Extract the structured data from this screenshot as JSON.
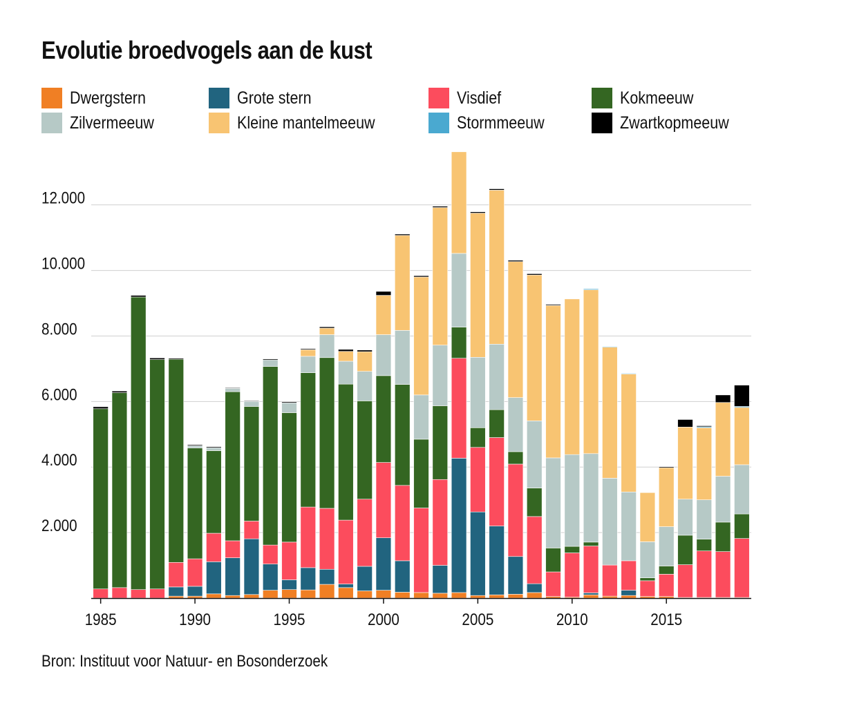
{
  "title": "Evolutie broedvogels aan de kust",
  "source": "Bron: Instituut voor Natuur- en Bosonderzoek",
  "colors": {
    "Dwergstern": "#f07f24",
    "Grote stern": "#21647f",
    "Visdief": "#fc4c5d",
    "Kokmeeuw": "#346622",
    "Zilvermeeuw": "#b6c9c6",
    "Kleine mantelmeeuw": "#f8c472",
    "Stormmeeuw": "#4aa9d0",
    "Zwartkopmeeuw": "#000000"
  },
  "legend": [
    {
      "label": "Dwergstern",
      "color": "#f07f24"
    },
    {
      "label": "Grote stern",
      "color": "#21647f"
    },
    {
      "label": "Visdief",
      "color": "#fc4c5d"
    },
    {
      "label": "Kokmeeuw",
      "color": "#346622"
    },
    {
      "label": "Zilvermeeuw",
      "color": "#b6c9c6"
    },
    {
      "label": "Kleine mantelmeeuw",
      "color": "#f8c472"
    },
    {
      "label": "Stormmeeuw",
      "color": "#4aa9d0"
    },
    {
      "label": "Zwartkopmeeuw",
      "color": "#000000"
    }
  ],
  "chart_data": {
    "type": "bar",
    "stacked": true,
    "title": "Evolutie broedvogels aan de kust",
    "xlabel": "",
    "ylabel": "",
    "ylim": [
      0,
      13300
    ],
    "yticks": [
      2000,
      4000,
      6000,
      8000,
      10000,
      12000
    ],
    "ytick_labels": [
      "2.000",
      "4.000",
      "6.000",
      "8.000",
      "10.000",
      "12.000"
    ],
    "xtick_labels": [
      "1985",
      "1990",
      "1995",
      "2000",
      "2005",
      "2010",
      "2015"
    ],
    "grid": true,
    "legend_position": "top",
    "categories": [
      "1985",
      "1986",
      "1987",
      "1988",
      "1989",
      "1990",
      "1991",
      "1992",
      "1993",
      "1994",
      "1995",
      "1996",
      "1997",
      "1998",
      "1999",
      "2000",
      "2001",
      "2002",
      "2003",
      "2004",
      "2005",
      "2006",
      "2007",
      "2008",
      "2009",
      "2010",
      "2011",
      "2012",
      "2013",
      "2014",
      "2015",
      "2016",
      "2017",
      "2018",
      "2019"
    ],
    "series": [
      {
        "name": "Dwergstern",
        "values": [
          0,
          0,
          0,
          0,
          60,
          60,
          130,
          80,
          110,
          240,
          260,
          250,
          420,
          320,
          220,
          240,
          180,
          170,
          150,
          170,
          80,
          100,
          120,
          170,
          50,
          30,
          100,
          60,
          80,
          50,
          50,
          20,
          20,
          20,
          20
        ]
      },
      {
        "name": "Grote stern",
        "values": [
          0,
          0,
          0,
          0,
          280,
          300,
          980,
          1150,
          1700,
          800,
          300,
          680,
          460,
          110,
          750,
          1600,
          960,
          0,
          850,
          4100,
          2550,
          2100,
          1150,
          270,
          0,
          0,
          60,
          0,
          160,
          0,
          0,
          0,
          0,
          0,
          0
        ]
      },
      {
        "name": "Visdief",
        "values": [
          280,
          320,
          260,
          280,
          750,
          840,
          870,
          520,
          540,
          580,
          1150,
          1850,
          1860,
          1950,
          2050,
          2300,
          2300,
          2580,
          2620,
          3050,
          1970,
          2700,
          2820,
          2050,
          750,
          1350,
          1430,
          950,
          900,
          480,
          680,
          1000,
          1420,
          1400,
          1800
        ]
      },
      {
        "name": "Kokmeeuw",
        "values": [
          5500,
          5950,
          8930,
          7000,
          6200,
          3380,
          2520,
          4550,
          3500,
          5450,
          3950,
          4100,
          4600,
          4150,
          3000,
          2650,
          3080,
          2100,
          2250,
          950,
          600,
          850,
          380,
          870,
          730,
          200,
          120,
          0,
          0,
          90,
          250,
          900,
          360,
          900,
          750
        ]
      },
      {
        "name": "Zilvermeeuw",
        "values": [
          0,
          0,
          0,
          0,
          0,
          70,
          90,
          100,
          150,
          200,
          300,
          500,
          700,
          700,
          900,
          1250,
          1650,
          1350,
          1850,
          2250,
          2150,
          2000,
          1650,
          2050,
          2750,
          2800,
          2700,
          2650,
          2100,
          1100,
          1200,
          1100,
          1200,
          1400,
          1500
        ]
      },
      {
        "name": "Kleine mantelmeeuw",
        "values": [
          0,
          0,
          0,
          0,
          0,
          0,
          0,
          0,
          0,
          0,
          0,
          200,
          200,
          300,
          600,
          1200,
          2900,
          3600,
          4200,
          3100,
          4400,
          4700,
          4150,
          4450,
          4650,
          4750,
          5000,
          4000,
          3600,
          1500,
          1800,
          2200,
          2200,
          2250,
          1750
        ]
      },
      {
        "name": "Stormmeeuw",
        "values": [
          0,
          0,
          0,
          0,
          0,
          0,
          0,
          0,
          0,
          0,
          0,
          0,
          0,
          0,
          0,
          0,
          0,
          0,
          0,
          0,
          0,
          0,
          0,
          0,
          0,
          0,
          30,
          20,
          20,
          0,
          0,
          0,
          30,
          0,
          30
        ]
      },
      {
        "name": "Zwartkopmeeuw",
        "values": [
          60,
          50,
          50,
          50,
          30,
          30,
          30,
          20,
          20,
          30,
          30,
          30,
          40,
          60,
          50,
          120,
          40,
          40,
          40,
          0,
          40,
          40,
          40,
          40,
          30,
          0,
          0,
          0,
          0,
          0,
          30,
          230,
          30,
          230,
          650
        ]
      }
    ]
  }
}
